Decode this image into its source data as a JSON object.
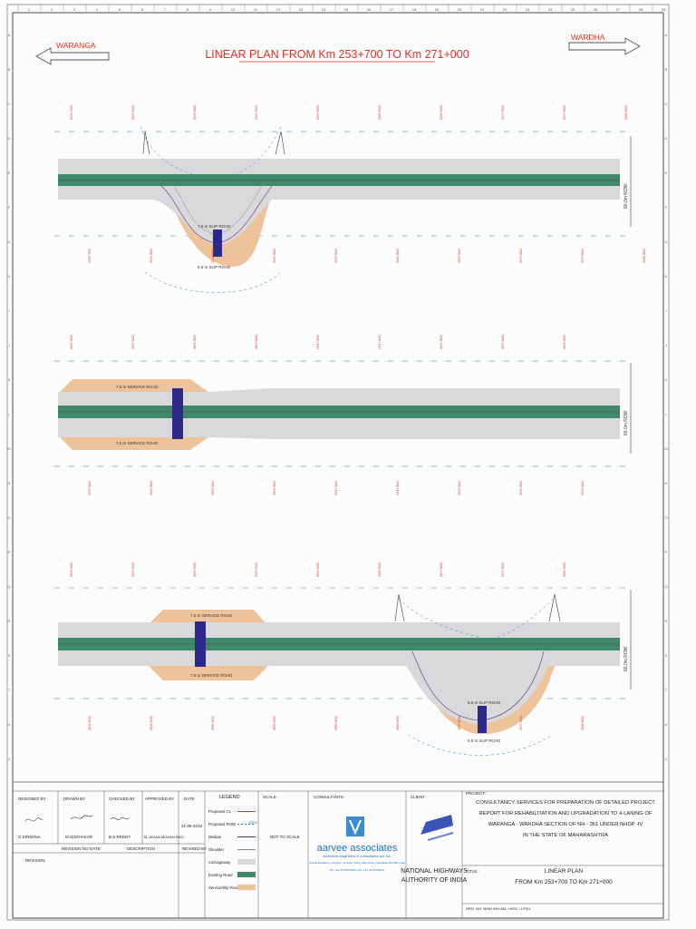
{
  "drawing": {
    "title": "LINEAR PLAN FROM Km 253+700 TO Km 271+000",
    "left_direction": "WARANGA",
    "right_direction": "WARDHA",
    "scale_numbers": [
      "1",
      "2",
      "3",
      "4",
      "5",
      "6",
      "7",
      "8",
      "9",
      "10",
      "11",
      "12",
      "13",
      "14",
      "15",
      "16",
      "17",
      "18",
      "19",
      "20",
      "21",
      "22",
      "23",
      "24",
      "25",
      "26",
      "27",
      "28",
      "29"
    ],
    "grid_letters": [
      "A",
      "B",
      "C",
      "D",
      "E",
      "F",
      "G",
      "H",
      "I",
      "J",
      "K",
      "L",
      "M",
      "N",
      "O",
      "P",
      "Q",
      "R",
      "S",
      "T",
      "U",
      "V"
    ],
    "roads": {
      "top_upper": "7.5 m SLIP ROAD",
      "top_lower": "5.5 m SLIP ROAD",
      "mid_upper": "7.5 m SERVICE ROAD",
      "mid_lower": "7.5 m SERVICE ROAD",
      "bot_upper": "7.5 m SERVICE ROAD",
      "bot_lower": "7.5 m SERVICE ROAD",
      "bot_slip_upper": "5.5 m SLIP ROAD",
      "bot_slip_lower": "5.5 m SLIP ROAD"
    },
    "side_labels": [
      "60.0m ROW",
      "60.0m ROW",
      "60.0m ROW"
    ],
    "chainage_top": [
      "253+700",
      "254+000",
      "254+500",
      "255+000",
      "255+500",
      "256+000",
      "256+500",
      "257+000",
      "257+500",
      "258+000"
    ],
    "chainage_mid": [
      "259+000",
      "259+500",
      "260+000",
      "260+500",
      "261+000",
      "261+500",
      "262+000",
      "262+500",
      "263+000"
    ],
    "chainage_bot": [
      "264+000",
      "264+500",
      "265+000",
      "265+500",
      "266+000",
      "266+500",
      "267+000",
      "267+500",
      "268+000"
    ]
  },
  "title_block": {
    "designed_by": "DESIGNED BY",
    "drawn_by": "DRAWN BY",
    "checked_by": "CHECKED BY",
    "approved_by": "APPROVED BY",
    "date_label": "DATE",
    "designer": "G.KRISHNA",
    "drafter": "M.SUDHAKAR",
    "checker": "B.S.REDDY",
    "approver": "M.JAGAN MOHAN RAO",
    "date": "21-08-2016",
    "revision": "REVISION",
    "revision_no": "REVISION NO",
    "rev_date": "DATE",
    "description": "DESCRIPTION",
    "revised_by": "REVISED BY",
    "legend_title": "LEGEND",
    "legend": [
      {
        "label": "Proposed CL"
      },
      {
        "label": "Proposed ROW",
        "code": "ROW"
      },
      {
        "label": "Median"
      },
      {
        "label": "Shoulder"
      },
      {
        "label": "Carriageway"
      },
      {
        "label": "Existing Road"
      },
      {
        "label": "Service/Slip Road"
      }
    ],
    "scale_label": "SCALE :",
    "scale_value": "NOT TO SCALE",
    "consultants_label": "CONSULTANTS :",
    "consultant_name": "aarvee associates",
    "consultant_sub": "architects engineers & consultants pvt. ltd.",
    "consultant_addr": "Ravula Residency, 2nd Floor, Srinagar Colony Main Road, Hyderabad-500 082, India",
    "consultant_tel": "Tel: +91 40 23737633, Fax: +91 40 23736527",
    "client_label": "CLIENT :",
    "client_name_1": "NATIONAL HIGHWAYS",
    "client_name_2": "AUTHORITY OF INDIA",
    "project_label": "PROJECT :",
    "project_lines": [
      "CONSULTANCY SERVICES FOR PREPARATION OF DETAILED PROJECT",
      "REPORT FOR REHABILITATION AND UPGRADATION TO 4-LANING OF",
      "WARANGA - WARDHA SECTION OF NH - 361 UNDER NHDP -IV",
      "IN THE STATE OF MAHARASHTRA"
    ],
    "title_label": "TITLE :",
    "title_lines": [
      "LINEAR PLAN",
      "FROM Km 253+700 TO Km 271+000"
    ],
    "drg_no": "DRG. NO. NHAI /NH-361 / WSC / LP/01"
  },
  "colors": {
    "green": "#3e8a67",
    "grey_road": "#d9d9db",
    "orange_service": "#eec39a",
    "blue_structure": "#2b2a8a",
    "red_text": "#e03028",
    "cyan_text": "#1a84b8"
  }
}
